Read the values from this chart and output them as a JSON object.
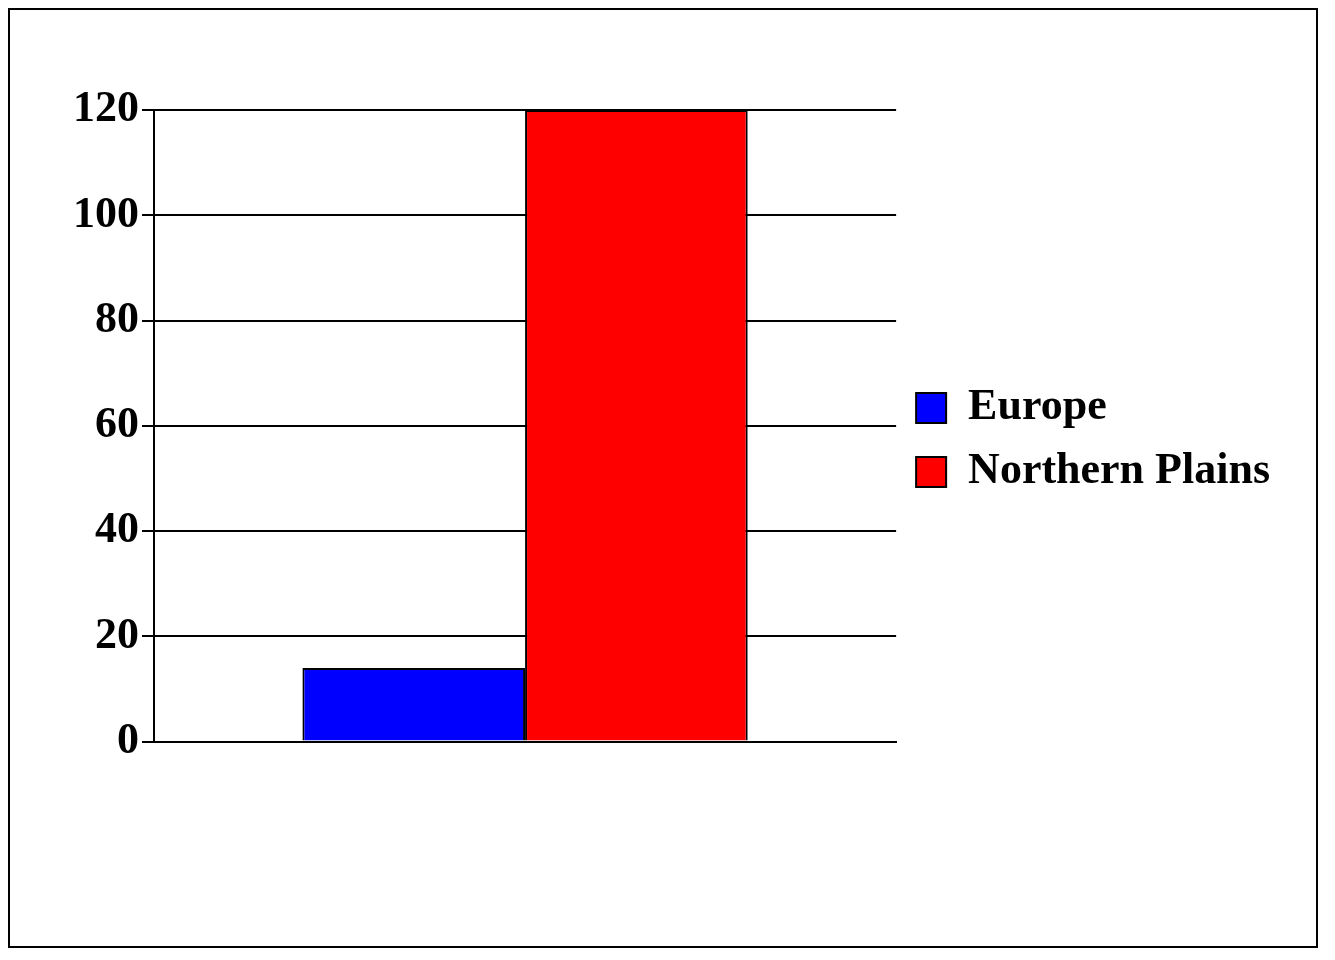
{
  "chart_data": {
    "type": "bar",
    "categories": [
      null
    ],
    "series": [
      {
        "name": "Europe",
        "color": "#0000ff",
        "values": [
          14
        ]
      },
      {
        "name": "Northern Plains",
        "color": "#ff0000",
        "values": [
          120
        ]
      }
    ],
    "ylim": [
      0,
      120
    ],
    "yticks": [
      0,
      20,
      40,
      60,
      80,
      100,
      120
    ],
    "grid": "y",
    "legend": "right"
  }
}
